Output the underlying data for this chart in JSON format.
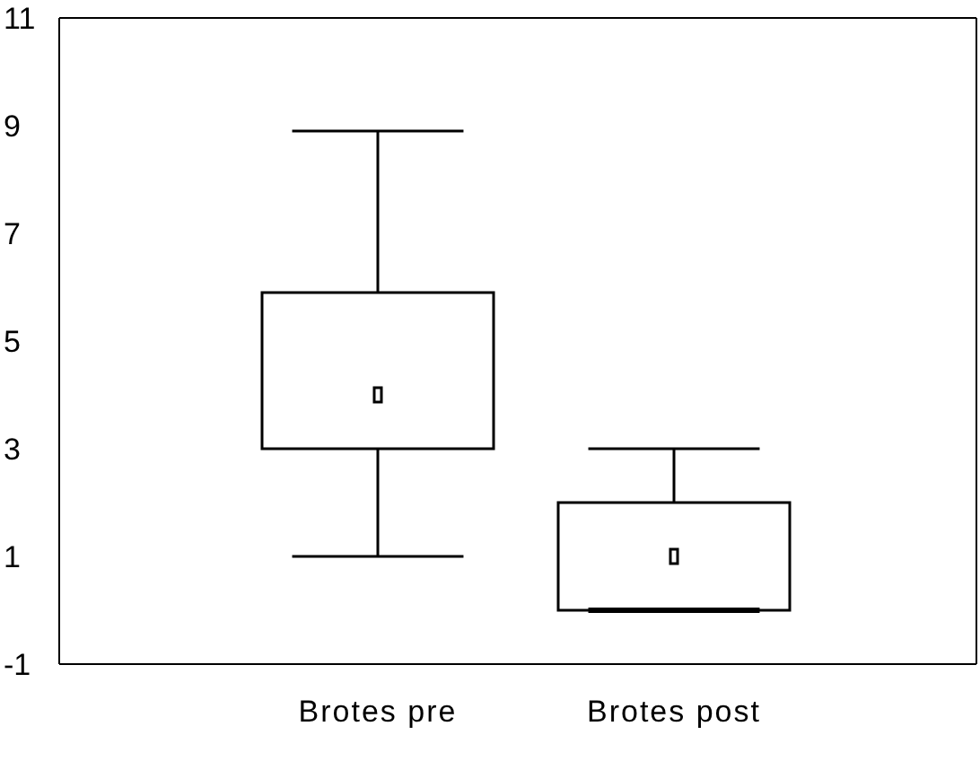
{
  "chart_data": {
    "type": "box",
    "categories": [
      "Brotes pre",
      "Brotes post"
    ],
    "boxes": [
      {
        "low": 1,
        "q1": 3,
        "median": 4,
        "q3": 5.9,
        "high": 8.9
      },
      {
        "low": 0,
        "q1": 0,
        "median": 1,
        "q3": 2,
        "high": 3
      }
    ],
    "color": "#000000",
    "ylim": [
      -1,
      11
    ],
    "yticks": [
      -1,
      1,
      3,
      5,
      7,
      9,
      11
    ]
  }
}
